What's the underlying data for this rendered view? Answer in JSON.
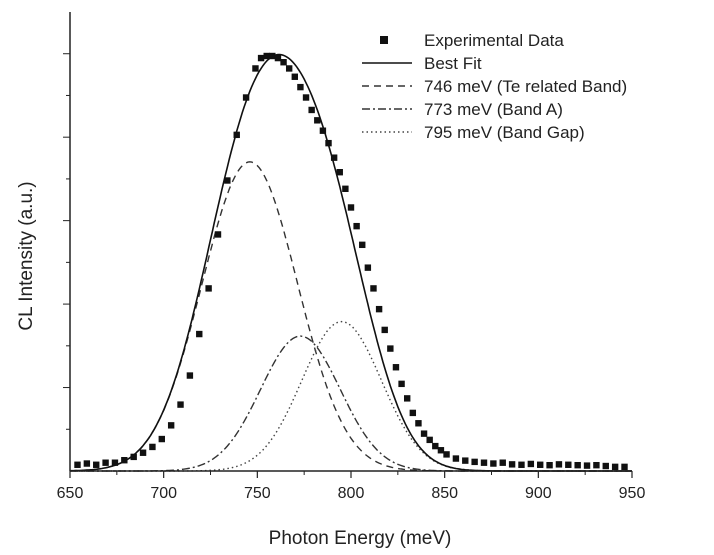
{
  "chart_data": {
    "type": "line",
    "title": "",
    "xlabel": "Photon Energy (meV)",
    "ylabel": "CL Intensity (a.u.)",
    "xlim": [
      650,
      950
    ],
    "ylim": [
      0,
      1.0
    ],
    "x_ticks": [
      650,
      700,
      750,
      800,
      850,
      900,
      950
    ],
    "y_tick_labels": false,
    "grid": false,
    "legend_position": "top-right",
    "series": [
      {
        "name": "Experimental Data",
        "kind": "markers",
        "style": "square",
        "color": "#111111",
        "x": [
          654,
          659,
          664,
          669,
          674,
          679,
          684,
          689,
          694,
          699,
          704,
          709,
          714,
          719,
          724,
          729,
          734,
          739,
          744,
          749,
          752,
          755,
          758,
          761,
          764,
          767,
          770,
          773,
          776,
          779,
          782,
          785,
          788,
          791,
          794,
          797,
          800,
          803,
          806,
          809,
          812,
          815,
          818,
          821,
          824,
          827,
          830,
          833,
          836,
          839,
          842,
          845,
          848,
          851,
          856,
          861,
          866,
          871,
          876,
          881,
          886,
          891,
          896,
          901,
          906,
          911,
          916,
          921,
          926,
          931,
          936,
          941,
          946
        ],
        "values": [
          0.015,
          0.018,
          0.015,
          0.02,
          0.02,
          0.026,
          0.034,
          0.044,
          0.058,
          0.077,
          0.11,
          0.16,
          0.23,
          0.33,
          0.44,
          0.57,
          0.7,
          0.81,
          0.9,
          0.97,
          0.995,
          1.0,
          1.0,
          0.995,
          0.985,
          0.97,
          0.95,
          0.925,
          0.9,
          0.87,
          0.845,
          0.82,
          0.79,
          0.755,
          0.72,
          0.68,
          0.635,
          0.59,
          0.545,
          0.49,
          0.44,
          0.39,
          0.34,
          0.295,
          0.25,
          0.21,
          0.175,
          0.14,
          0.115,
          0.09,
          0.075,
          0.06,
          0.05,
          0.04,
          0.03,
          0.025,
          0.022,
          0.02,
          0.018,
          0.02,
          0.016,
          0.015,
          0.017,
          0.015,
          0.014,
          0.016,
          0.015,
          0.014,
          0.013,
          0.014,
          0.012,
          0.01,
          0.01
        ]
      },
      {
        "name": "Best Fit",
        "kind": "gaussian-sum",
        "dash": "",
        "color": "#111111"
      },
      {
        "name": "746 meV (Te related Band)",
        "kind": "gaussian",
        "center": 746,
        "fwhm": 60,
        "amplitude": 0.745,
        "dash": "7,5",
        "color": "#333333"
      },
      {
        "name": "773 meV (Band A)",
        "kind": "gaussian",
        "center": 773,
        "fwhm": 50,
        "amplitude": 0.325,
        "dash": "8,3,2,3",
        "color": "#333333"
      },
      {
        "name": "795 meV (Band Gap)",
        "kind": "gaussian",
        "center": 795,
        "fwhm": 50,
        "amplitude": 0.36,
        "dash": "1.5,3",
        "color": "#444444"
      }
    ]
  }
}
